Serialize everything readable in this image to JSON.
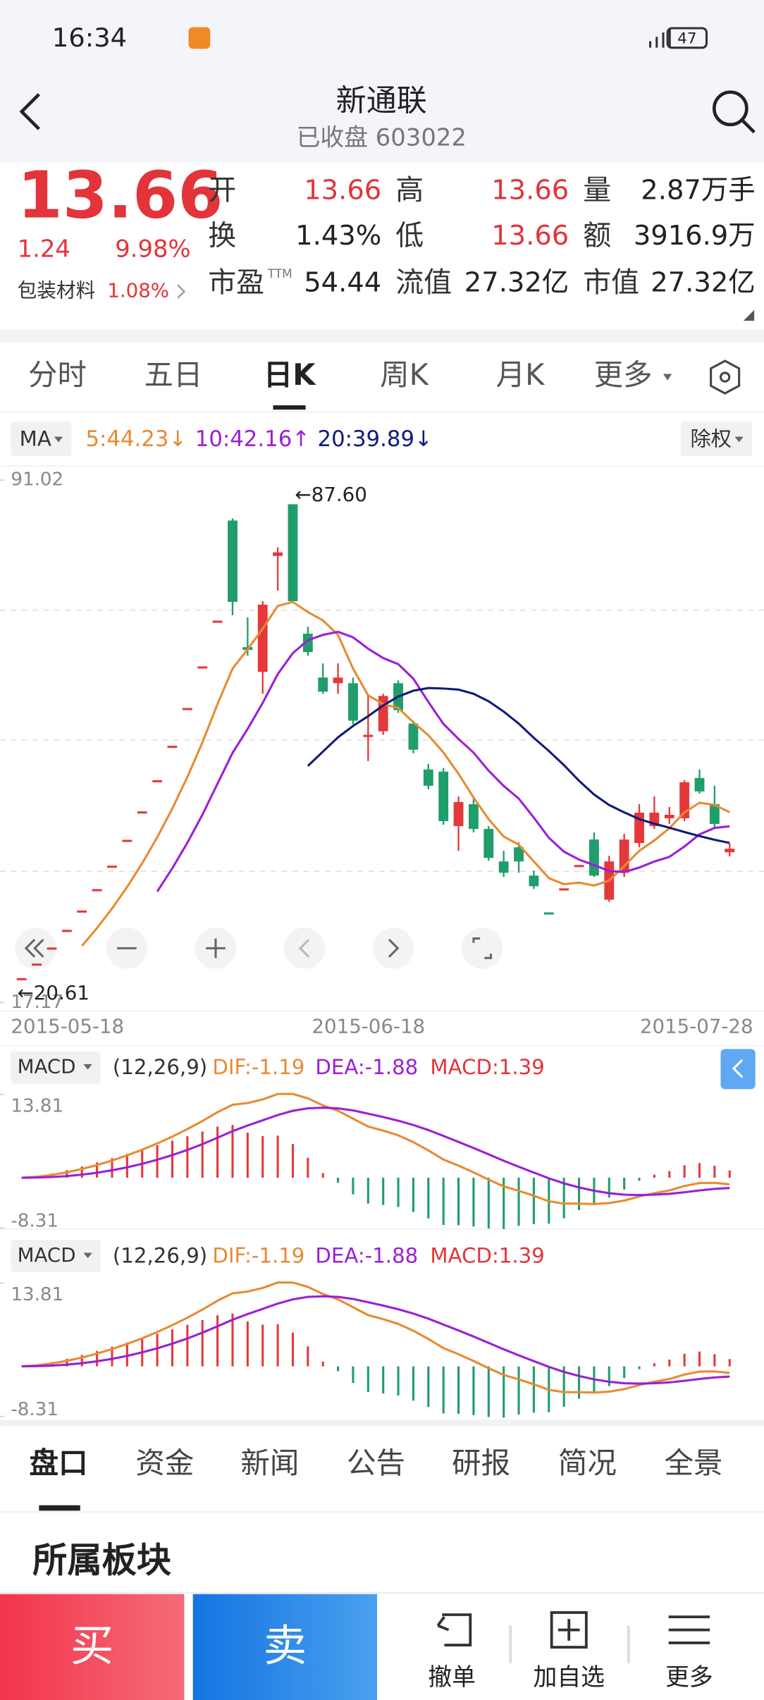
{
  "status": {
    "time": "16:34",
    "battery": "47"
  },
  "header": {
    "title": "新通联",
    "subtitle": "已收盘 603022"
  },
  "quote": {
    "price": "13.66",
    "change": "1.24",
    "change_pct": "9.98%",
    "sector": "包装材料",
    "sector_pct": "1.08%"
  },
  "stats": [
    {
      "label": "开",
      "value": "13.66"
    },
    {
      "label": "高",
      "value": "13.66"
    },
    {
      "label": "量",
      "value": "2.87万手"
    },
    {
      "label": "换",
      "value": "1.43%"
    },
    {
      "label": "低",
      "value": "13.66"
    },
    {
      "label": "额",
      "value": "3916.9万"
    },
    {
      "label": "市盈",
      "sup": "TTM",
      "value": "54.44"
    },
    {
      "label": "流值",
      "value": "27.32亿"
    },
    {
      "label": "市值",
      "value": "27.32亿"
    }
  ],
  "tabs": [
    "分时",
    "五日",
    "日K",
    "周K",
    "月K",
    "更多"
  ],
  "indicator_bar": {
    "ma": "MA",
    "ma5": "5:44.23↓",
    "ma10": "10:42.16↑",
    "ma20": "20:39.89↓",
    "adjust": "除权"
  },
  "chart_data": {
    "type": "candlestick",
    "ylim": [
      17.17,
      91.02
    ],
    "yticks": [
      17.17,
      91.02
    ],
    "x_labels": [
      "2015-05-18",
      "2015-06-18",
      "2015-07-28"
    ],
    "annotations": [
      "←87.60",
      "←20.61"
    ],
    "up_color": "#e5383b",
    "down_color": "#1f9d6b",
    "ma_colors": [
      "#e88a32",
      "#9a1fd6",
      "#101c78"
    ],
    "candles": [
      {
        "o": 20.61,
        "h": 20.61,
        "l": 20.61,
        "c": 20.61
      },
      {
        "o": 22.67,
        "h": 22.67,
        "l": 22.67,
        "c": 22.67
      },
      {
        "o": 24.94,
        "h": 24.94,
        "l": 24.94,
        "c": 24.94
      },
      {
        "o": 27.43,
        "h": 27.43,
        "l": 27.43,
        "c": 27.43
      },
      {
        "o": 30.17,
        "h": 30.17,
        "l": 30.17,
        "c": 30.17
      },
      {
        "o": 33.19,
        "h": 33.19,
        "l": 33.19,
        "c": 33.19
      },
      {
        "o": 36.51,
        "h": 36.51,
        "l": 36.51,
        "c": 36.51
      },
      {
        "o": 40.16,
        "h": 40.16,
        "l": 40.16,
        "c": 40.16
      },
      {
        "o": 44.18,
        "h": 44.18,
        "l": 44.18,
        "c": 44.18
      },
      {
        "o": 48.6,
        "h": 48.6,
        "l": 48.6,
        "c": 48.6
      },
      {
        "o": 53.46,
        "h": 53.46,
        "l": 53.46,
        "c": 53.46
      },
      {
        "o": 58.8,
        "h": 58.8,
        "l": 58.8,
        "c": 58.8
      },
      {
        "o": 64.68,
        "h": 64.68,
        "l": 64.68,
        "c": 64.68
      },
      {
        "o": 71.15,
        "h": 71.15,
        "l": 71.15,
        "c": 71.15
      },
      {
        "o": 85.3,
        "h": 85.6,
        "l": 71.9,
        "c": 73.8
      },
      {
        "o": 67.4,
        "h": 71.6,
        "l": 66.2,
        "c": 67.0
      },
      {
        "o": 63.9,
        "h": 73.9,
        "l": 60.8,
        "c": 73.4
      },
      {
        "o": 80.3,
        "h": 81.5,
        "l": 75.4,
        "c": 80.8
      },
      {
        "o": 87.6,
        "h": 87.6,
        "l": 73.9,
        "c": 73.9
      },
      {
        "o": 69.3,
        "h": 70.3,
        "l": 66.2,
        "c": 66.7
      },
      {
        "o": 63.1,
        "h": 65.1,
        "l": 60.8,
        "c": 61.1
      },
      {
        "o": 62.3,
        "h": 65.1,
        "l": 60.8,
        "c": 63.1
      },
      {
        "o": 62.3,
        "h": 63.1,
        "l": 56.5,
        "c": 57.0
      },
      {
        "o": 54.9,
        "h": 60.8,
        "l": 51.3,
        "c": 55.0
      },
      {
        "o": 55.5,
        "h": 60.8,
        "l": 55.0,
        "c": 60.5
      },
      {
        "o": 62.3,
        "h": 62.7,
        "l": 58.1,
        "c": 58.5
      },
      {
        "o": 56.6,
        "h": 57.0,
        "l": 52.4,
        "c": 52.9
      },
      {
        "o": 50.1,
        "h": 50.9,
        "l": 47.3,
        "c": 47.8
      },
      {
        "o": 49.8,
        "h": 50.3,
        "l": 42.3,
        "c": 42.8
      },
      {
        "o": 42.1,
        "h": 46.3,
        "l": 38.6,
        "c": 45.5
      },
      {
        "o": 45.2,
        "h": 46.0,
        "l": 41.2,
        "c": 41.7
      },
      {
        "o": 41.7,
        "h": 42.1,
        "l": 37.2,
        "c": 37.6
      },
      {
        "o": 37.1,
        "h": 38.6,
        "l": 34.9,
        "c": 35.5
      },
      {
        "o": 39.1,
        "h": 39.8,
        "l": 35.5,
        "c": 37.1
      },
      {
        "o": 35.1,
        "h": 35.8,
        "l": 33.2,
        "c": 33.6
      },
      {
        "o": 29.9,
        "h": 29.9,
        "l": 29.9,
        "c": 29.9
      },
      {
        "o": 33.3,
        "h": 33.3,
        "l": 33.3,
        "c": 33.3
      },
      {
        "o": 36.6,
        "h": 36.6,
        "l": 36.6,
        "c": 36.6
      },
      {
        "o": 40.2,
        "h": 41.2,
        "l": 34.9,
        "c": 35.1
      },
      {
        "o": 31.7,
        "h": 37.9,
        "l": 31.4,
        "c": 37.1
      },
      {
        "o": 35.5,
        "h": 41.0,
        "l": 34.9,
        "c": 40.2
      },
      {
        "o": 39.7,
        "h": 45.2,
        "l": 39.1,
        "c": 44.0
      },
      {
        "o": 42.1,
        "h": 46.3,
        "l": 41.7,
        "c": 44.0
      },
      {
        "o": 43.2,
        "h": 44.8,
        "l": 42.4,
        "c": 43.7
      },
      {
        "o": 43.2,
        "h": 48.6,
        "l": 42.8,
        "c": 48.3
      },
      {
        "o": 48.9,
        "h": 50.1,
        "l": 46.7,
        "c": 47.0
      },
      {
        "o": 45.2,
        "h": 47.8,
        "l": 41.7,
        "c": 42.4
      },
      {
        "o": 38.4,
        "h": 39.6,
        "l": 37.8,
        "c": 38.9
      }
    ]
  },
  "macd_panels": [
    {
      "name": "MACD",
      "params": "(12,26,9)",
      "dif": "DIF:-1.19",
      "dea": "DEA:-1.88",
      "macd": "MACD:1.39",
      "ylim": [
        -8.31,
        13.81
      ],
      "yticks": [
        -8.31,
        13.81
      ]
    },
    {
      "name": "MACD",
      "params": "(12,26,9)",
      "dif": "DIF:-1.19",
      "dea": "DEA:-1.88",
      "macd": "MACD:1.39",
      "ylim": [
        -8.31,
        13.81
      ],
      "yticks": [
        -8.31,
        13.81
      ]
    }
  ],
  "bottom_tabs": [
    "盘口",
    "资金",
    "新闻",
    "公告",
    "研报",
    "简况",
    "全景"
  ],
  "section_title": "所属板块",
  "actions": {
    "buy": "买",
    "sell": "卖",
    "cancel": "撤单",
    "watch": "加自选",
    "more": "更多"
  }
}
